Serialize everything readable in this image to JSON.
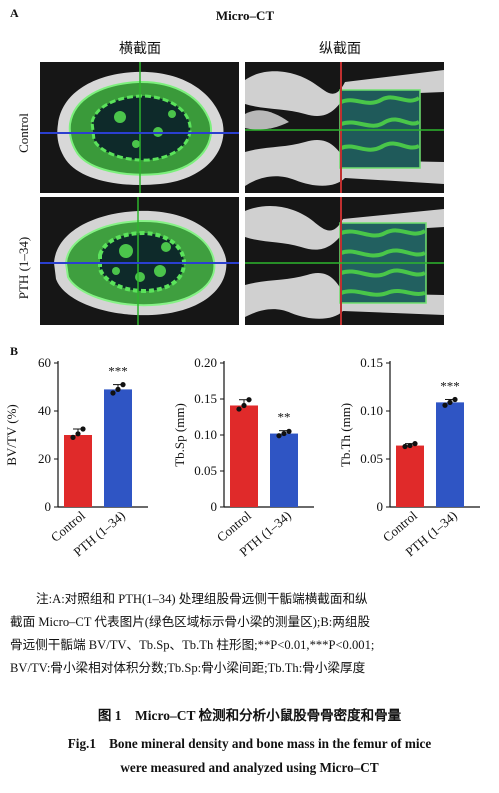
{
  "panel_a": {
    "letter": "A",
    "title": "Micro–CT",
    "col_labels": [
      "横截面",
      "纵截面"
    ],
    "row_labels": [
      "Control",
      "PTH (1–34)"
    ]
  },
  "panel_b": {
    "letter": "B",
    "colors": {
      "control": "#e02a2a",
      "pth": "#2f55c4",
      "error": "#111111"
    }
  },
  "chart_data": [
    {
      "type": "bar",
      "ylabel": "BV/TV (%)",
      "ylim": [
        0,
        60
      ],
      "yticks": [
        "0",
        "20",
        "40",
        "60"
      ],
      "ytick_values": [
        0,
        20,
        40,
        60
      ],
      "categories": [
        "Control",
        "PTH (1–34)"
      ],
      "values": [
        30,
        49
      ],
      "errors": [
        2.5,
        2
      ],
      "points": [
        [
          29,
          30.5,
          32.5
        ],
        [
          47.5,
          49,
          51
        ]
      ],
      "significance": [
        "",
        "***"
      ]
    },
    {
      "type": "bar",
      "ylabel": "Tb.Sp (mm)",
      "ylim": [
        0,
        0.2
      ],
      "yticks": [
        "0",
        "0.05",
        "0.10",
        "0.15",
        "0.20"
      ],
      "ytick_values": [
        0,
        0.05,
        0.1,
        0.15,
        0.2
      ],
      "categories": [
        "Control",
        "PTH (1–34)"
      ],
      "values": [
        0.141,
        0.102
      ],
      "errors": [
        0.008,
        0.004
      ],
      "points": [
        [
          0.136,
          0.141,
          0.149
        ],
        [
          0.099,
          0.102,
          0.105
        ]
      ],
      "significance": [
        "",
        "**"
      ]
    },
    {
      "type": "bar",
      "ylabel": "Tb.Th (mm)",
      "ylim": [
        0,
        0.15
      ],
      "yticks": [
        "0",
        "0.05",
        "0.10",
        "0.15"
      ],
      "ytick_values": [
        0,
        0.05,
        0.1,
        0.15
      ],
      "categories": [
        "Control",
        "PTH (1–34)"
      ],
      "values": [
        0.064,
        0.109
      ],
      "errors": [
        0.002,
        0.003
      ],
      "points": [
        [
          0.063,
          0.064,
          0.066
        ],
        [
          0.106,
          0.109,
          0.112
        ]
      ],
      "significance": [
        "",
        "***"
      ]
    }
  ],
  "note": {
    "line1": "注:A:对照组和 PTH(1–34) 处理组股骨远侧干骺端横截面和纵",
    "line2": "截面 Micro–CT 代表图片(绿色区域标示骨小梁的测量区);B:两组股",
    "line3": "骨远侧干骺端 BV/TV、Tb.Sp、Tb.Th 柱形图;**P<0.01,***P<0.001;",
    "line4": "BV/TV:骨小梁相对体积分数;Tb.Sp:骨小梁间距;Tb.Th:骨小梁厚度"
  },
  "caption": {
    "cn": "图 1    Micro–CT 检测和分析小鼠股骨骨密度和骨量",
    "en_line1": "Fig.1    Bone mineral density and bone mass in the femur of mice",
    "en_line2": "were measured and analyzed using Micro–CT"
  }
}
